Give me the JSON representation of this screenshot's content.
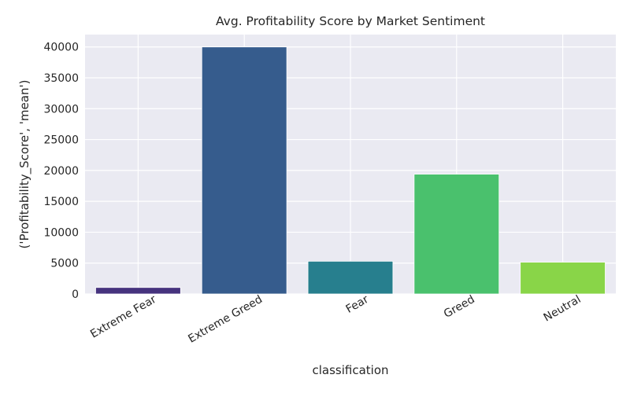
{
  "chart_data": {
    "type": "bar",
    "title": "Avg. Profitability Score by Market Sentiment",
    "xlabel": "classification",
    "ylabel": "('Profitability_Score', 'mean')",
    "categories": [
      "Extreme Fear",
      "Extreme Greed",
      "Fear",
      "Greed",
      "Neutral"
    ],
    "values": [
      1050,
      40000,
      5300,
      19400,
      5150
    ],
    "colors": [
      "#46337e",
      "#365c8d",
      "#277f8e",
      "#4ac16d",
      "#89d548"
    ],
    "ylim": [
      0,
      42000
    ],
    "yticks": [
      0,
      5000,
      10000,
      15000,
      20000,
      25000,
      30000,
      35000,
      40000
    ],
    "grid": true,
    "legend": "none",
    "background": "#eaeaf2"
  }
}
